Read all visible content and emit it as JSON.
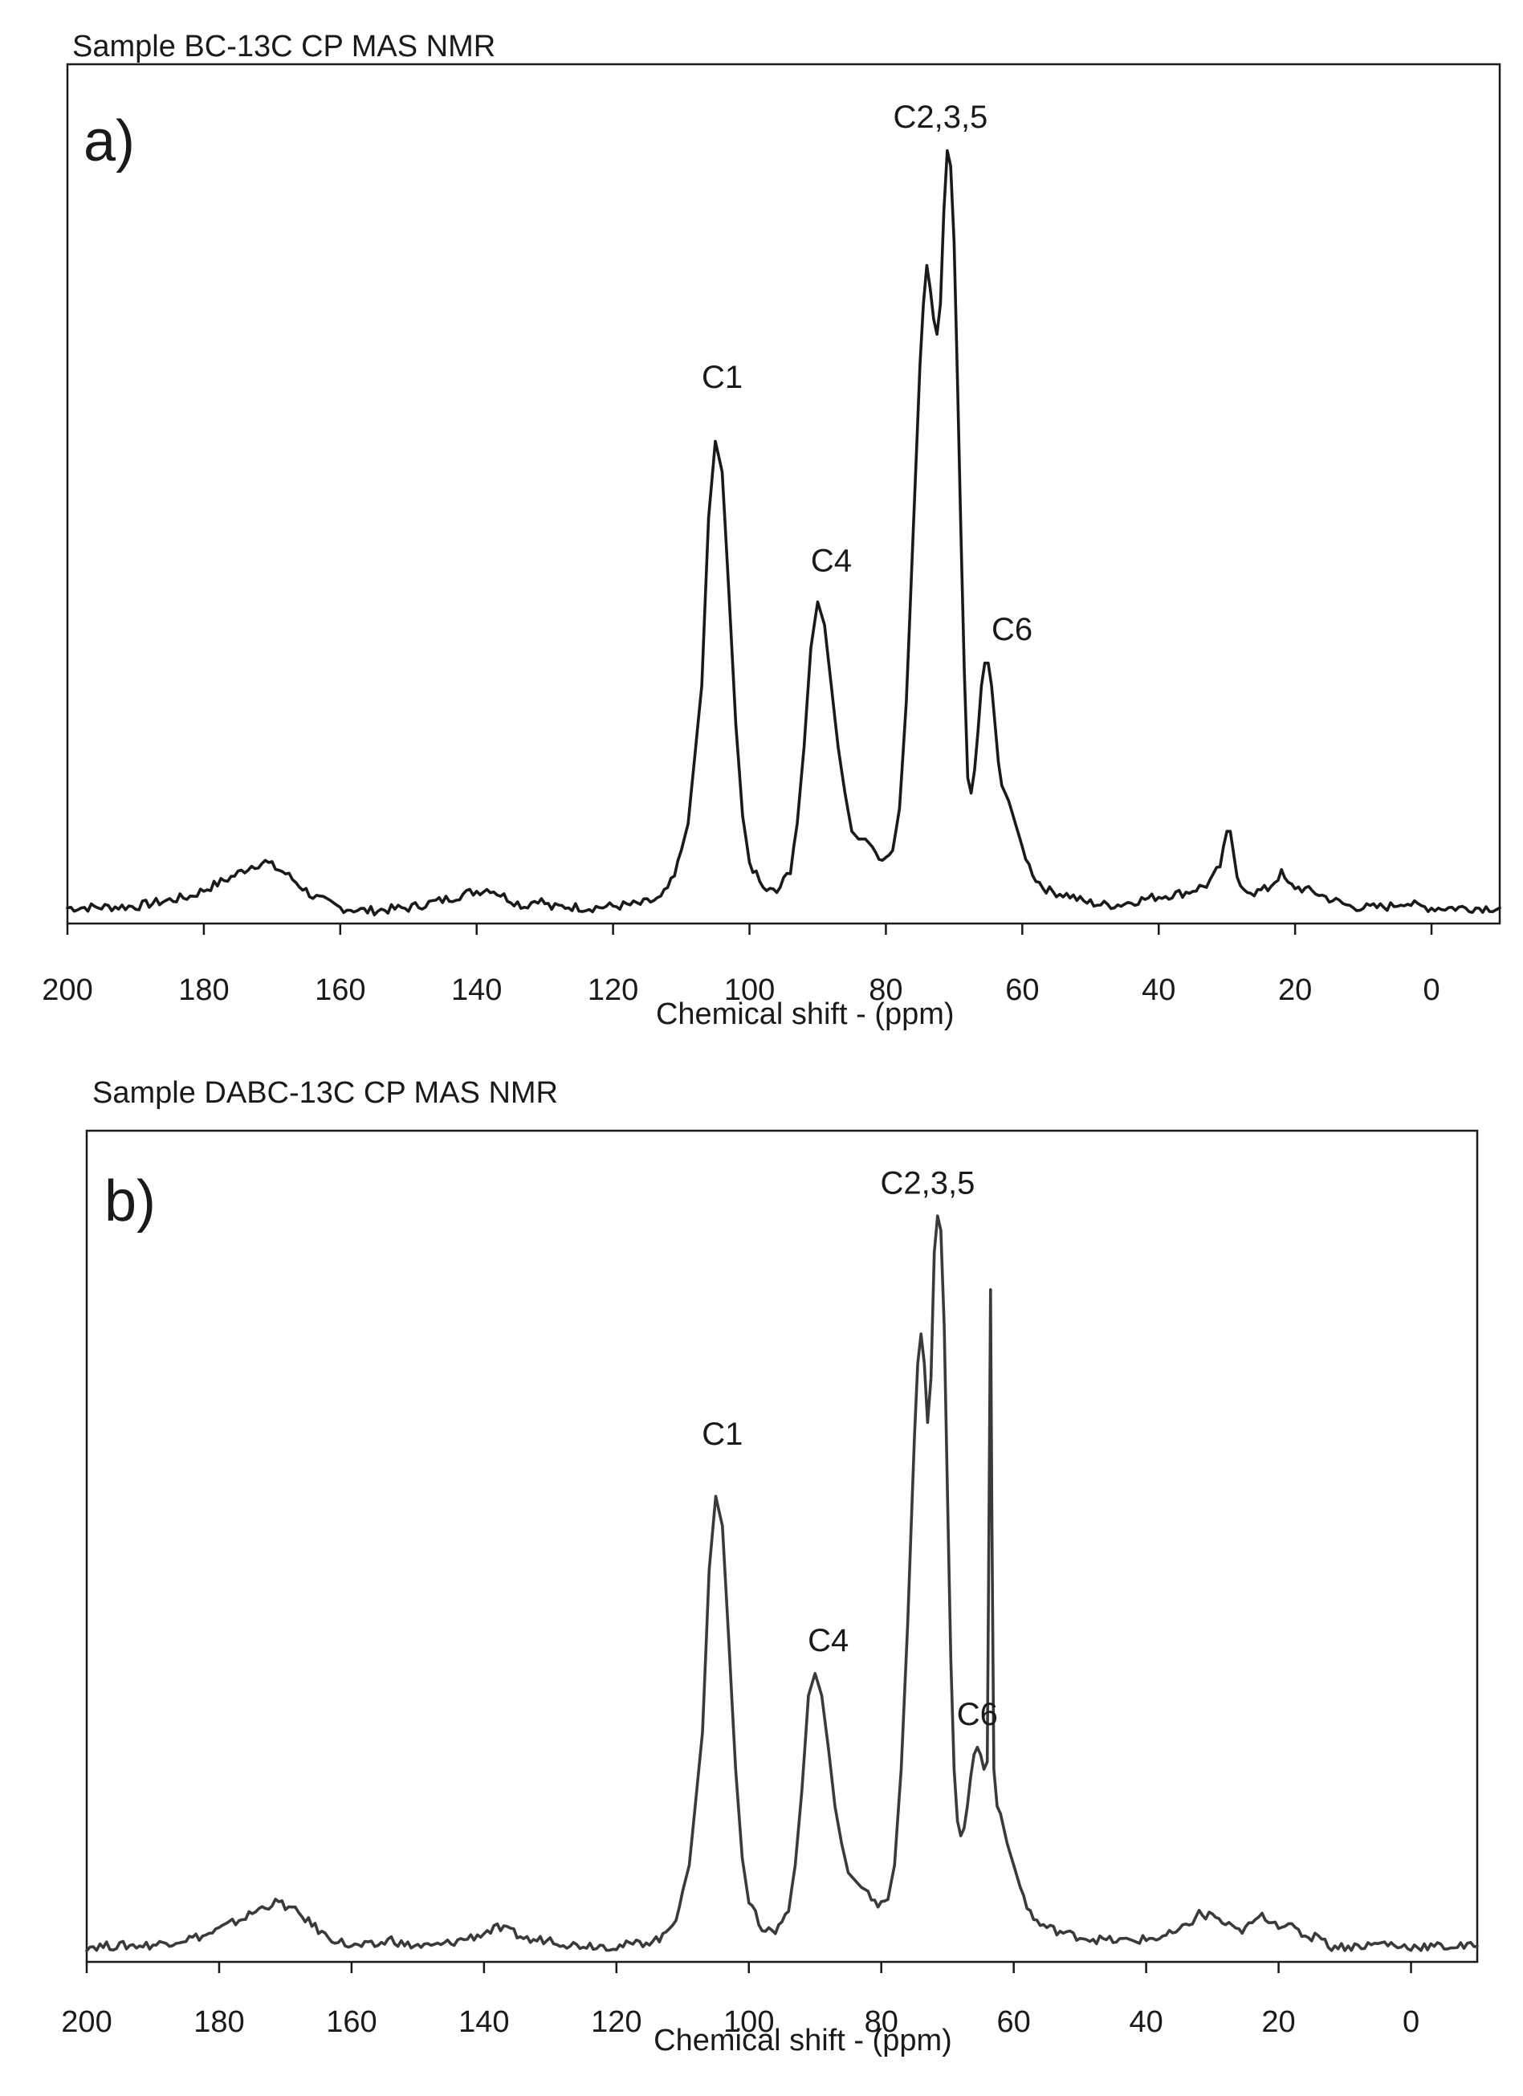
{
  "chart_data": [
    {
      "type": "line",
      "panel_label": "a)",
      "title": "Sample BC-13C CP MAS NMR",
      "xlabel": "Chemical shift - (ppm)",
      "ylabel": "",
      "xlim": [
        200,
        -10
      ],
      "x_reversed": true,
      "xticks": [
        200,
        180,
        160,
        140,
        120,
        100,
        80,
        60,
        40,
        20,
        0
      ],
      "ylim": [
        0,
        1.05
      ],
      "y_axis_visible": false,
      "grid": false,
      "line_color": "#1a1a1a",
      "series": [
        {
          "x": [
            200,
            190,
            182,
            176,
            173,
            171,
            168,
            164,
            160,
            156,
            150,
            145,
            141,
            138,
            136,
            133,
            131,
            129,
            127,
            124,
            120,
            116,
            113,
            111,
            109,
            107,
            106,
            105,
            104,
            103,
            102,
            101,
            100,
            98,
            96,
            94,
            93,
            92,
            91,
            90,
            89,
            88,
            87,
            86,
            85,
            84,
            83,
            82,
            81,
            80,
            79,
            78,
            77,
            76,
            75,
            74.5,
            74,
            73.5,
            73,
            72.5,
            72,
            71.5,
            71,
            70.5,
            70,
            69.5,
            69,
            68.5,
            68,
            67.5,
            67,
            66.5,
            66,
            65.5,
            65,
            64.5,
            64,
            63.5,
            63,
            62,
            61,
            60,
            59,
            58,
            57,
            56,
            55,
            53,
            51,
            48,
            46,
            44,
            40,
            36,
            33,
            32,
            31,
            30.5,
            30,
            29.5,
            29,
            28.5,
            28,
            27,
            26,
            24,
            23,
            22,
            21,
            19,
            17,
            15,
            12,
            9,
            6,
            4,
            2,
            0,
            -5,
            -10
          ],
          "y": [
            0.01,
            0.012,
            0.025,
            0.05,
            0.065,
            0.07,
            0.055,
            0.025,
            0.01,
            0.006,
            0.01,
            0.02,
            0.03,
            0.035,
            0.025,
            0.012,
            0.022,
            0.01,
            0.012,
            0.01,
            0.012,
            0.015,
            0.022,
            0.05,
            0.12,
            0.3,
            0.52,
            0.62,
            0.58,
            0.42,
            0.25,
            0.13,
            0.07,
            0.035,
            0.03,
            0.06,
            0.12,
            0.22,
            0.35,
            0.41,
            0.38,
            0.3,
            0.22,
            0.16,
            0.11,
            0.1,
            0.1,
            0.09,
            0.075,
            0.07,
            0.085,
            0.14,
            0.28,
            0.5,
            0.72,
            0.8,
            0.85,
            0.82,
            0.78,
            0.76,
            0.8,
            0.92,
            1.0,
            0.98,
            0.88,
            0.7,
            0.5,
            0.32,
            0.18,
            0.16,
            0.19,
            0.24,
            0.3,
            0.33,
            0.33,
            0.3,
            0.25,
            0.2,
            0.17,
            0.15,
            0.12,
            0.09,
            0.065,
            0.048,
            0.038,
            0.032,
            0.03,
            0.026,
            0.018,
            0.014,
            0.014,
            0.018,
            0.025,
            0.03,
            0.04,
            0.05,
            0.065,
            0.09,
            0.11,
            0.11,
            0.08,
            0.045,
            0.035,
            0.035,
            0.03,
            0.035,
            0.045,
            0.055,
            0.04,
            0.035,
            0.03,
            0.022,
            0.012,
            0.01,
            0.012,
            0.018,
            0.012,
            0.01,
            0.01,
            0.01
          ]
        }
      ],
      "annotations": [
        {
          "text": "C1",
          "x": 104,
          "y": 0.69
        },
        {
          "text": "C4",
          "x": 88,
          "y": 0.45
        },
        {
          "text": "C2,3,5",
          "x": 72,
          "y": 1.03
        },
        {
          "text": "C6",
          "x": 61.5,
          "y": 0.36
        }
      ]
    },
    {
      "type": "line",
      "panel_label": "b)",
      "title": "Sample DABC-13C CP MAS NMR",
      "xlabel": "Chemical shift - (ppm)",
      "ylabel": "",
      "xlim": [
        200,
        -10
      ],
      "x_reversed": true,
      "xticks": [
        200,
        180,
        160,
        140,
        120,
        100,
        80,
        60,
        40,
        20,
        0
      ],
      "ylim": [
        0,
        1.05
      ],
      "y_axis_visible": false,
      "grid": false,
      "line_color": "#3a3a3a",
      "series": [
        {
          "x": [
            200,
            190,
            182,
            176,
            173,
            171,
            168,
            164,
            160,
            156,
            154,
            152,
            148,
            145,
            141,
            138,
            136,
            133,
            130,
            127,
            124,
            120,
            116,
            113,
            111,
            109,
            107,
            106,
            105,
            104,
            103,
            102,
            101,
            100,
            98,
            96,
            94,
            93,
            92,
            91,
            90,
            89,
            88,
            87,
            86,
            85,
            84,
            83,
            82,
            81,
            80,
            79,
            78,
            77,
            76,
            75,
            74.5,
            74,
            73.5,
            73,
            72.5,
            72,
            71.5,
            71,
            70.5,
            70,
            69.5,
            69,
            68.5,
            68,
            67.5,
            67,
            66.5,
            66,
            65.5,
            65,
            64.5,
            64,
            63.8,
            63.5,
            63.3,
            63,
            62.5,
            62,
            61,
            60,
            59,
            58,
            57,
            56,
            55,
            53,
            51,
            48,
            45,
            42,
            38,
            35,
            33,
            32,
            31,
            30,
            29,
            28,
            27,
            26,
            25,
            24,
            23,
            22,
            21,
            20,
            19,
            18,
            17,
            16,
            15,
            14,
            13,
            12,
            9,
            6,
            4,
            2,
            0,
            -5,
            -10
          ],
          "y": [
            0.01,
            0.012,
            0.025,
            0.05,
            0.065,
            0.07,
            0.055,
            0.025,
            0.01,
            0.012,
            0.02,
            0.012,
            0.01,
            0.015,
            0.025,
            0.035,
            0.03,
            0.018,
            0.02,
            0.012,
            0.012,
            0.01,
            0.015,
            0.022,
            0.05,
            0.12,
            0.3,
            0.52,
            0.62,
            0.58,
            0.42,
            0.25,
            0.13,
            0.07,
            0.035,
            0.03,
            0.06,
            0.12,
            0.22,
            0.35,
            0.38,
            0.35,
            0.28,
            0.2,
            0.15,
            0.11,
            0.1,
            0.09,
            0.085,
            0.072,
            0.065,
            0.075,
            0.12,
            0.25,
            0.45,
            0.7,
            0.8,
            0.84,
            0.8,
            0.72,
            0.78,
            0.95,
            1.0,
            0.98,
            0.85,
            0.62,
            0.4,
            0.25,
            0.18,
            0.16,
            0.17,
            0.2,
            0.24,
            0.27,
            0.28,
            0.27,
            0.25,
            0.26,
            0.5,
            0.9,
            0.6,
            0.25,
            0.2,
            0.19,
            0.15,
            0.12,
            0.09,
            0.065,
            0.048,
            0.04,
            0.036,
            0.03,
            0.025,
            0.02,
            0.018,
            0.018,
            0.022,
            0.03,
            0.045,
            0.055,
            0.05,
            0.055,
            0.045,
            0.04,
            0.035,
            0.03,
            0.035,
            0.04,
            0.05,
            0.05,
            0.045,
            0.04,
            0.04,
            0.035,
            0.03,
            0.025,
            0.022,
            0.03,
            0.015,
            0.01,
            0.01,
            0.012,
            0.015,
            0.01,
            0.01,
            0.01,
            0.01
          ]
        }
      ],
      "annotations": [
        {
          "text": "C1",
          "x": 104,
          "y": 0.69
        },
        {
          "text": "C4",
          "x": 88,
          "y": 0.41
        },
        {
          "text": "C2,3,5",
          "x": 73,
          "y": 1.03
        },
        {
          "text": "C6",
          "x": 65.5,
          "y": 0.31
        }
      ]
    }
  ]
}
